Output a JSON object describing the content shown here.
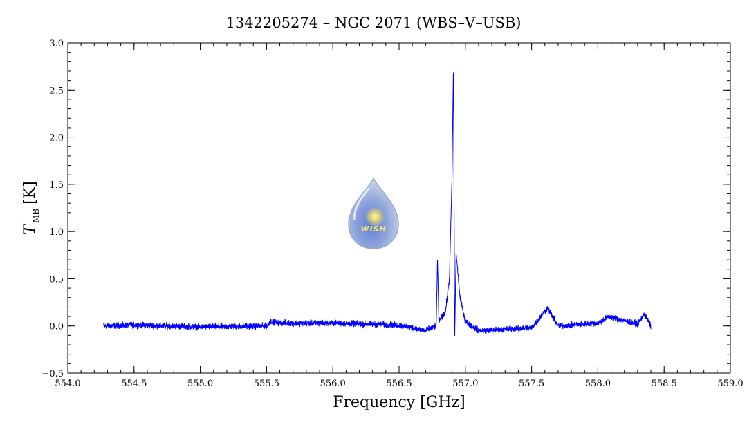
{
  "chart_data": {
    "type": "line",
    "title": "1342205274 – NGC 2071 (WBS–V–USB)",
    "xlabel": "Frequency [GHz]",
    "ylabel_main": "T",
    "ylabel_sub": "MB",
    "ylabel_unit": "[K]",
    "xlim": [
      554.0,
      559.0
    ],
    "ylim": [
      -0.5,
      3.0
    ],
    "x_ticks": [
      "554.0",
      "554.5",
      "555.0",
      "555.5",
      "556.0",
      "556.5",
      "557.0",
      "557.5",
      "558.0",
      "558.5",
      "559.0"
    ],
    "y_ticks": [
      "−0.5",
      "0.0",
      "0.5",
      "1.0",
      "1.5",
      "2.0",
      "2.5",
      "3.0"
    ],
    "grid": false,
    "line_color": "#0000ff",
    "x_range_data": [
      554.27,
      558.4
    ],
    "noise_rms": 0.02,
    "series": [
      {
        "values_description_points": [
          [
            554.27,
            0.0
          ],
          [
            554.5,
            0.01
          ],
          [
            555.0,
            -0.01
          ],
          [
            555.5,
            0.0
          ],
          [
            555.53,
            0.05
          ],
          [
            555.6,
            0.03
          ],
          [
            556.0,
            0.03
          ],
          [
            556.5,
            0.01
          ],
          [
            556.7,
            -0.05
          ],
          [
            556.78,
            0.0
          ],
          [
            556.79,
            0.72
          ],
          [
            556.8,
            0.05
          ],
          [
            556.85,
            0.15
          ],
          [
            556.88,
            0.5
          ],
          [
            556.9,
            1.6
          ],
          [
            556.91,
            2.76
          ],
          [
            556.92,
            -0.12
          ],
          [
            556.93,
            0.78
          ],
          [
            556.96,
            0.3
          ],
          [
            557.0,
            0.05
          ],
          [
            557.1,
            -0.05
          ],
          [
            557.5,
            -0.02
          ],
          [
            557.62,
            0.19
          ],
          [
            557.7,
            0.0
          ],
          [
            558.0,
            0.03
          ],
          [
            558.08,
            0.1
          ],
          [
            558.3,
            0.02
          ],
          [
            558.35,
            0.13
          ],
          [
            558.4,
            0.0
          ]
        ]
      }
    ]
  },
  "logo": {
    "text": "WISH",
    "icon": "water-drop-star-icon"
  }
}
